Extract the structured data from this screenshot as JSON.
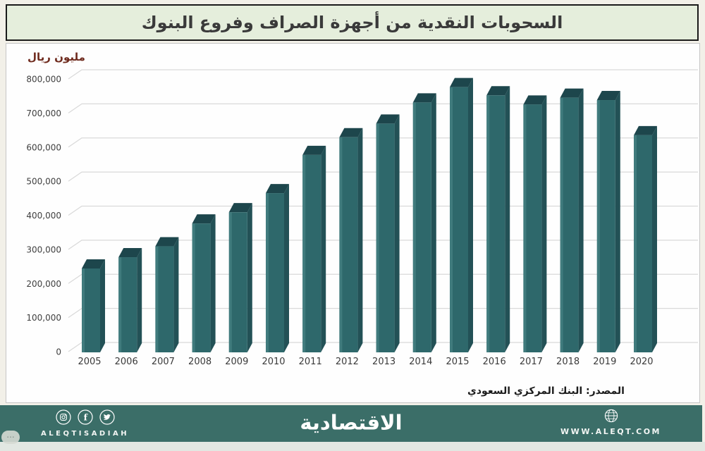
{
  "title": "السحوبات النقدية من أجهزة الصراف وفروع البنوك",
  "unit_label": "مليون ريال",
  "source": "المصدر: البنك المركزي السعودي",
  "footer": {
    "brand_latin": "ALEQTISADIAH",
    "brand_arabic": "الاقتصادية",
    "website": "WWW.ALEQT.COM",
    "social_icons": [
      "instagram-icon",
      "facebook-icon",
      "twitter-icon",
      "globe-icon"
    ],
    "bg_color": "#3b6e68"
  },
  "watermark": "...",
  "colors": {
    "title_band_bg": "#e5eedc",
    "title_text": "#3a3a3a",
    "bar_front": "#2e686b",
    "bar_side": "#235156",
    "bar_top": "#1d464c",
    "bar_highlight": "#478183",
    "grid": "#d9d9d9",
    "unit_text": "#6f2b1e",
    "footer_bg": "#3b6e68"
  },
  "chart_data": {
    "type": "bar",
    "style": "3d-column",
    "title": "السحوبات النقدية من أجهزة الصراف وفروع البنوك",
    "ylabel": "مليون ريال",
    "xlabel": "",
    "categories": [
      "2005",
      "2006",
      "2007",
      "2008",
      "2009",
      "2010",
      "2011",
      "2012",
      "2013",
      "2014",
      "2015",
      "2016",
      "2017",
      "2018",
      "2019",
      "2020"
    ],
    "values": [
      246000,
      279000,
      311000,
      378000,
      411000,
      467000,
      579000,
      631000,
      671000,
      733000,
      778000,
      754000,
      727000,
      747000,
      740000,
      637000
    ],
    "ylim": [
      0,
      800000
    ],
    "ytick_step": 100000,
    "grid": true,
    "legend": "none"
  }
}
